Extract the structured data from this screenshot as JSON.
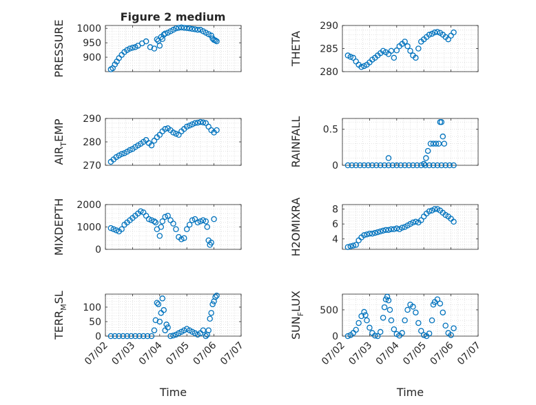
{
  "figure_title": "Figure 2 medium",
  "colors": {
    "marker": "#0072BD",
    "axis": "#262626",
    "grid": "#d9d9d9"
  },
  "chart_data": [
    {
      "type": "scatter",
      "title": "Figure 2 medium",
      "ylabel": "PRESSURE",
      "ylim": [
        850,
        1010
      ],
      "yticks": [
        900,
        950,
        1000
      ],
      "ytick_labels": [
        "900",
        "950",
        "1000"
      ],
      "x": [
        0.2,
        0.27,
        0.35,
        0.42,
        0.5,
        0.6,
        0.7,
        0.8,
        0.9,
        1.0,
        1.1,
        1.2,
        1.35,
        1.5,
        1.65,
        1.8,
        1.95,
        1.9,
        2.0,
        2.05,
        2.1,
        2.15,
        2.2,
        2.3,
        2.4,
        2.5,
        2.6,
        2.7,
        2.8,
        2.9,
        3.0,
        3.1,
        3.2,
        3.3,
        3.4,
        3.5,
        3.6,
        3.7,
        3.8,
        3.9,
        3.95,
        4.0,
        4.05,
        4.1
      ],
      "y": [
        858,
        862,
        875,
        885,
        897,
        908,
        918,
        925,
        930,
        933,
        935,
        940,
        948,
        955,
        935,
        930,
        957,
        962,
        940,
        970,
        963,
        978,
        982,
        985,
        990,
        995,
        1000,
        1002,
        1003,
        1002,
        1001,
        1000,
        998,
        997,
        995,
        995,
        990,
        985,
        980,
        975,
        965,
        960,
        958,
        955
      ]
    },
    {
      "type": "scatter",
      "ylabel": "THETA",
      "ylim": [
        280,
        290
      ],
      "yticks": [
        280,
        285,
        290
      ],
      "ytick_labels": [
        "280",
        "285",
        "290"
      ],
      "x": [
        0.2,
        0.3,
        0.4,
        0.5,
        0.6,
        0.7,
        0.8,
        0.9,
        1.0,
        1.1,
        1.2,
        1.3,
        1.4,
        1.5,
        1.6,
        1.7,
        1.8,
        1.9,
        2.0,
        2.1,
        2.2,
        2.3,
        2.4,
        2.5,
        2.6,
        2.7,
        2.8,
        2.9,
        3.0,
        3.1,
        3.2,
        3.3,
        3.4,
        3.5,
        3.6,
        3.7,
        3.8,
        3.9,
        4.0,
        4.1
      ],
      "y": [
        283.5,
        283.2,
        283.0,
        282.2,
        281.5,
        281.0,
        281.2,
        281.5,
        282.0,
        282.6,
        283.0,
        283.5,
        284.0,
        284.5,
        284.2,
        283.8,
        284.5,
        283.0,
        284.6,
        285.5,
        286.0,
        286.5,
        285.5,
        284.5,
        283.5,
        283.0,
        285.0,
        286.5,
        287.0,
        287.5,
        288.0,
        288.2,
        288.5,
        288.6,
        288.4,
        288.0,
        287.5,
        287.0,
        287.8,
        288.5
      ]
    },
    {
      "type": "scatter",
      "ylabel": "AIR_TEMP",
      "ylabel_parts": [
        "AIR",
        "T",
        "EMP"
      ],
      "ylim": [
        270,
        290
      ],
      "yticks": [
        270,
        280,
        290
      ],
      "ytick_labels": [
        "270",
        "280",
        "290"
      ],
      "x": [
        0.2,
        0.3,
        0.4,
        0.5,
        0.6,
        0.7,
        0.8,
        0.9,
        1.0,
        1.1,
        1.2,
        1.3,
        1.4,
        1.5,
        1.6,
        1.7,
        1.8,
        1.9,
        2.0,
        2.1,
        2.2,
        2.3,
        2.4,
        2.5,
        2.6,
        2.7,
        2.8,
        2.9,
        3.0,
        3.1,
        3.2,
        3.3,
        3.4,
        3.5,
        3.6,
        3.7,
        3.8,
        3.9,
        4.0,
        4.1
      ],
      "y": [
        271.5,
        272.5,
        273.5,
        274.2,
        274.8,
        275.2,
        275.8,
        276.5,
        277.0,
        277.8,
        278.5,
        279.2,
        280.0,
        280.8,
        279.5,
        278.5,
        280.5,
        282.0,
        283.0,
        284.5,
        285.5,
        285.8,
        285.0,
        284.0,
        283.5,
        283.0,
        284.5,
        285.5,
        286.5,
        287.0,
        287.5,
        288.0,
        288.2,
        288.5,
        288.3,
        288.0,
        286.5,
        285.0,
        284.0,
        285.0
      ]
    },
    {
      "type": "scatter",
      "ylabel": "RAINFALL",
      "ylim": [
        0,
        0.65
      ],
      "yticks": [
        0,
        0.5
      ],
      "ytick_labels": [
        "0",
        "0.5"
      ],
      "x": [
        0.2,
        0.35,
        0.5,
        0.65,
        0.8,
        0.95,
        1.1,
        1.25,
        1.4,
        1.55,
        1.7,
        1.85,
        2.0,
        2.15,
        2.3,
        2.45,
        2.6,
        2.75,
        2.9,
        3.05,
        3.2,
        3.35,
        3.5,
        3.65,
        3.8,
        3.95,
        4.1,
        1.7,
        3.0,
        3.08,
        3.15,
        3.25,
        3.35,
        3.45,
        3.55,
        3.6,
        3.65,
        3.7,
        3.75
      ],
      "y": [
        0,
        0,
        0,
        0,
        0,
        0,
        0,
        0,
        0,
        0,
        0,
        0,
        0,
        0,
        0,
        0,
        0,
        0,
        0,
        0,
        0,
        0,
        0,
        0,
        0,
        0,
        0,
        0.1,
        0.02,
        0.1,
        0.2,
        0.3,
        0.3,
        0.3,
        0.3,
        0.6,
        0.6,
        0.4,
        0.3
      ]
    },
    {
      "type": "scatter",
      "ylabel": "MIXDEPTH",
      "ylim": [
        0,
        2000
      ],
      "yticks": [
        0,
        1000,
        2000
      ],
      "ytick_labels": [
        "0",
        "1000",
        "2000"
      ],
      "x": [
        0.2,
        0.3,
        0.4,
        0.5,
        0.6,
        0.7,
        0.8,
        0.9,
        1.0,
        1.1,
        1.2,
        1.3,
        1.4,
        1.5,
        1.6,
        1.7,
        1.8,
        1.85,
        1.9,
        2.0,
        2.05,
        2.1,
        2.2,
        2.3,
        2.4,
        2.5,
        2.6,
        2.7,
        2.8,
        2.9,
        3.0,
        3.1,
        3.2,
        3.3,
        3.4,
        3.5,
        3.6,
        3.7,
        3.75,
        3.8,
        3.85,
        3.9,
        4.0
      ],
      "y": [
        950,
        900,
        850,
        800,
        900,
        1100,
        1200,
        1300,
        1400,
        1500,
        1600,
        1700,
        1650,
        1500,
        1350,
        1300,
        1250,
        1200,
        900,
        600,
        1000,
        1250,
        1450,
        1500,
        1300,
        1150,
        900,
        550,
        450,
        500,
        900,
        1100,
        1300,
        1350,
        1200,
        1250,
        1300,
        1250,
        1000,
        400,
        200,
        300,
        1350
      ]
    },
    {
      "type": "scatter",
      "ylabel": "H2OMIXRA",
      "ylim": [
        2.6,
        8.6
      ],
      "yticks": [
        4,
        6,
        8
      ],
      "ytick_labels": [
        "4",
        "6",
        "8"
      ],
      "x": [
        0.2,
        0.3,
        0.4,
        0.5,
        0.6,
        0.7,
        0.8,
        0.9,
        1.0,
        1.1,
        1.2,
        1.3,
        1.4,
        1.5,
        1.6,
        1.7,
        1.8,
        1.9,
        2.0,
        2.1,
        2.2,
        2.3,
        2.4,
        2.5,
        2.6,
        2.7,
        2.8,
        2.9,
        3.0,
        3.1,
        3.2,
        3.3,
        3.4,
        3.5,
        3.6,
        3.7,
        3.8,
        3.9,
        4.0,
        4.1
      ],
      "y": [
        2.9,
        3.0,
        3.1,
        3.2,
        3.8,
        4.2,
        4.5,
        4.6,
        4.7,
        4.7,
        4.8,
        4.9,
        5.0,
        5.1,
        5.2,
        5.2,
        5.3,
        5.3,
        5.4,
        5.3,
        5.5,
        5.6,
        5.8,
        6.0,
        6.2,
        6.3,
        6.2,
        6.5,
        7.0,
        7.4,
        7.7,
        7.8,
        8.0,
        8.0,
        7.8,
        7.5,
        7.2,
        7.0,
        6.7,
        6.3
      ]
    },
    {
      "type": "scatter",
      "ylabel": "TERR_MSL",
      "ylabel_parts": [
        "TERR",
        "M",
        "SL"
      ],
      "ylim": [
        0,
        145
      ],
      "yticks": [
        0,
        50,
        100
      ],
      "ytick_labels": [
        "0",
        "50",
        "100"
      ],
      "x": [
        0.2,
        0.35,
        0.5,
        0.65,
        0.8,
        0.95,
        1.1,
        1.25,
        1.4,
        1.55,
        1.7,
        1.8,
        1.85,
        1.9,
        1.95,
        2.0,
        2.05,
        2.1,
        2.15,
        2.2,
        2.25,
        2.3,
        2.4,
        2.5,
        2.6,
        2.7,
        2.8,
        2.9,
        3.0,
        3.1,
        3.2,
        3.3,
        3.4,
        3.5,
        3.6,
        3.7,
        3.75,
        3.8,
        3.85,
        3.9,
        3.95,
        4.0,
        4.05,
        4.1
      ],
      "y": [
        0,
        0,
        0,
        0,
        0,
        0,
        0,
        0,
        0,
        0,
        0,
        20,
        55,
        115,
        110,
        50,
        80,
        130,
        90,
        20,
        40,
        30,
        0,
        2,
        5,
        10,
        15,
        20,
        25,
        20,
        15,
        10,
        5,
        10,
        20,
        0,
        5,
        20,
        60,
        80,
        110,
        120,
        135,
        140
      ]
    },
    {
      "type": "scatter",
      "ylabel": "SUN_FLUX",
      "ylabel_parts": [
        "SUN",
        "F",
        "LUX"
      ],
      "ylim": [
        0,
        800
      ],
      "yticks": [
        0,
        500
      ],
      "ytick_labels": [
        "0",
        "500"
      ],
      "x": [
        0.2,
        0.3,
        0.4,
        0.5,
        0.6,
        0.7,
        0.8,
        0.85,
        0.9,
        1.0,
        1.1,
        1.2,
        1.3,
        1.4,
        1.5,
        1.55,
        1.6,
        1.65,
        1.7,
        1.75,
        1.8,
        1.9,
        2.0,
        2.1,
        2.2,
        2.3,
        2.4,
        2.5,
        2.6,
        2.7,
        2.8,
        2.9,
        3.0,
        3.1,
        3.2,
        3.3,
        3.35,
        3.4,
        3.5,
        3.6,
        3.7,
        3.8,
        3.9,
        4.0,
        4.1
      ],
      "y": [
        0,
        20,
        60,
        120,
        250,
        380,
        460,
        400,
        300,
        160,
        60,
        10,
        0,
        80,
        350,
        550,
        700,
        750,
        680,
        500,
        300,
        130,
        40,
        10,
        60,
        300,
        500,
        600,
        560,
        450,
        250,
        100,
        20,
        0,
        50,
        300,
        600,
        650,
        700,
        620,
        450,
        200,
        60,
        20,
        150
      ]
    }
  ],
  "x_axis": {
    "label": "Time",
    "ticks": [
      0,
      1,
      2,
      3,
      4,
      5
    ],
    "tick_labels": [
      "07/02",
      "07/03",
      "07/04",
      "07/05",
      "07/06",
      "07/07"
    ]
  }
}
